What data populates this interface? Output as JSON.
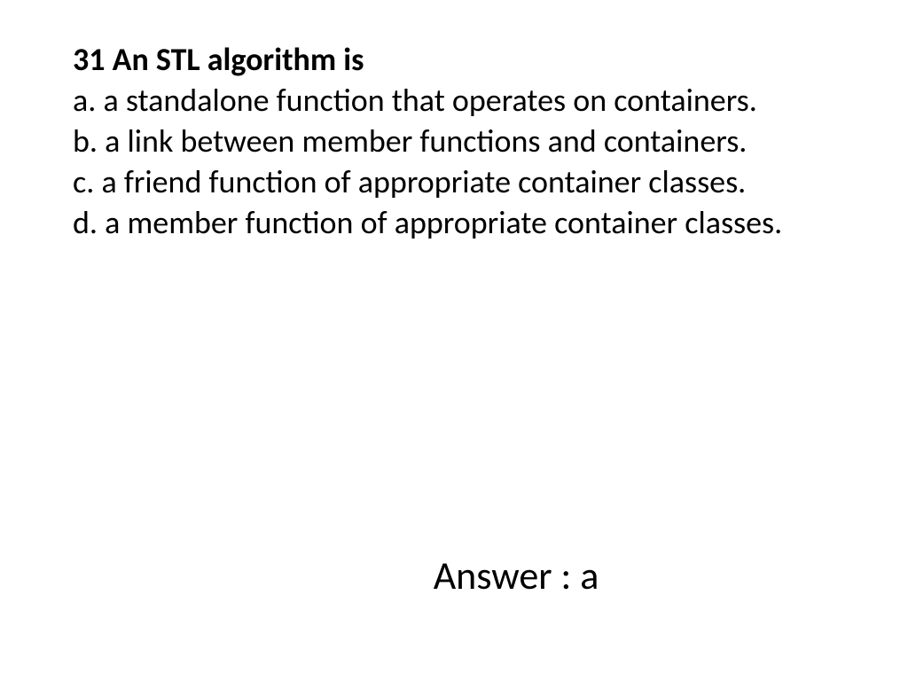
{
  "slide": {
    "background_color": "#ffffff",
    "text_color": "#000000",
    "font_family": "Calibri",
    "question_fontsize": 36,
    "answer_fontsize": 44,
    "question_number": "31",
    "question_title": "31 An STL algorithm is",
    "options": {
      "a": "a. a standalone function that operates on containers.",
      "b": "b. a link between member functions and containers.",
      "c": "c. a friend function of appropriate container classes.",
      "d": "d. a member function of appropriate container classes."
    },
    "answer_label": "Answer : a",
    "correct_answer": "a"
  }
}
